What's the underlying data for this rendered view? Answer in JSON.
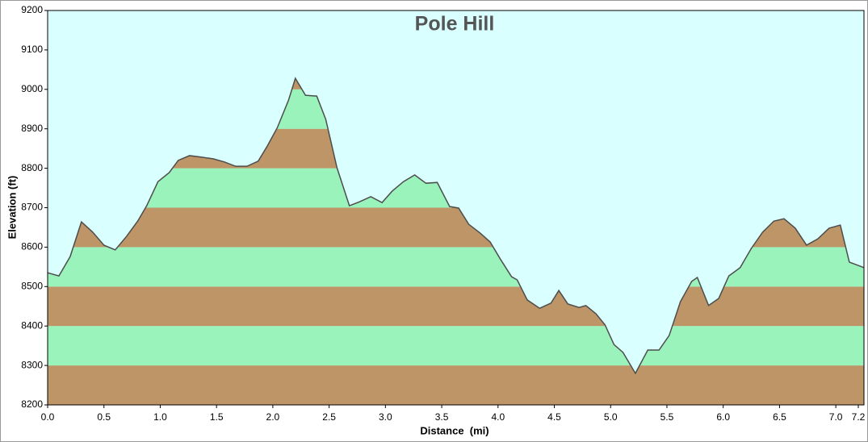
{
  "chart_data": {
    "type": "area",
    "title": "Pole Hill",
    "x_label": "Distance  (mi)",
    "y_label": "Elevation (ft)",
    "x": [
      0,
      0.1,
      0.2,
      0.3,
      0.4,
      0.5,
      0.6,
      0.7,
      0.8,
      0.88,
      0.98,
      1.08,
      1.16,
      1.26,
      1.37,
      1.47,
      1.57,
      1.67,
      1.77,
      1.87,
      1.95,
      2.04,
      2.14,
      2.2,
      2.29,
      2.39,
      2.47,
      2.57,
      2.68,
      2.77,
      2.87,
      2.97,
      3.06,
      3.16,
      3.26,
      3.36,
      3.46,
      3.57,
      3.65,
      3.74,
      3.84,
      3.93,
      4.02,
      4.12,
      4.17,
      4.26,
      4.37,
      4.47,
      4.54,
      4.62,
      4.72,
      4.78,
      4.87,
      4.95,
      5.03,
      5.11,
      5.22,
      5.33,
      5.43,
      5.52,
      5.62,
      5.72,
      5.77,
      5.87,
      5.96,
      6.05,
      6.15,
      6.25,
      6.35,
      6.45,
      6.54,
      6.64,
      6.74,
      6.84,
      6.94,
      7.04,
      7.12,
      7.25
    ],
    "values": [
      8535,
      8527,
      8576,
      8664,
      8638,
      8605,
      8593,
      8627,
      8666,
      8705,
      8766,
      8789,
      8820,
      8832,
      8828,
      8824,
      8816,
      8805,
      8805,
      8818,
      8856,
      8903,
      8973,
      9028,
      8985,
      8983,
      8924,
      8801,
      8705,
      8715,
      8728,
      8713,
      8742,
      8766,
      8783,
      8762,
      8764,
      8703,
      8699,
      8658,
      8636,
      8613,
      8570,
      8525,
      8517,
      8466,
      8445,
      8458,
      8490,
      8456,
      8447,
      8452,
      8431,
      8403,
      8353,
      8333,
      8280,
      8339,
      8339,
      8376,
      8462,
      8513,
      8523,
      8452,
      8470,
      8527,
      8548,
      8597,
      8638,
      8666,
      8672,
      8648,
      8605,
      8621,
      8648,
      8656,
      8562,
      8548
    ],
    "xlim": [
      0,
      7.25
    ],
    "xticks": [
      {
        "value": 0,
        "label": "0.0"
      },
      0.5,
      {
        "value": 1,
        "label": "1.0"
      },
      1.5,
      {
        "value": 2,
        "label": "2.0"
      },
      2.5,
      {
        "value": 3,
        "label": "3.0"
      },
      3.5,
      {
        "value": 4,
        "label": "4.0"
      },
      4.5,
      {
        "value": 5,
        "label": "5.0"
      },
      5.5,
      {
        "value": 6,
        "label": "6.0"
      },
      6.5,
      {
        "value": 7,
        "label": "7.0"
      },
      7.2
    ],
    "ylim": [
      8200,
      9200
    ],
    "yticks": [
      8200,
      8300,
      8400,
      8500,
      8600,
      8700,
      8800,
      8900,
      9000,
      9100,
      9200
    ],
    "background_color": "#d9ffff",
    "band_colors": [
      "#bd9567",
      "#99f3bb"
    ],
    "line_color": "#4d4d4d"
  }
}
